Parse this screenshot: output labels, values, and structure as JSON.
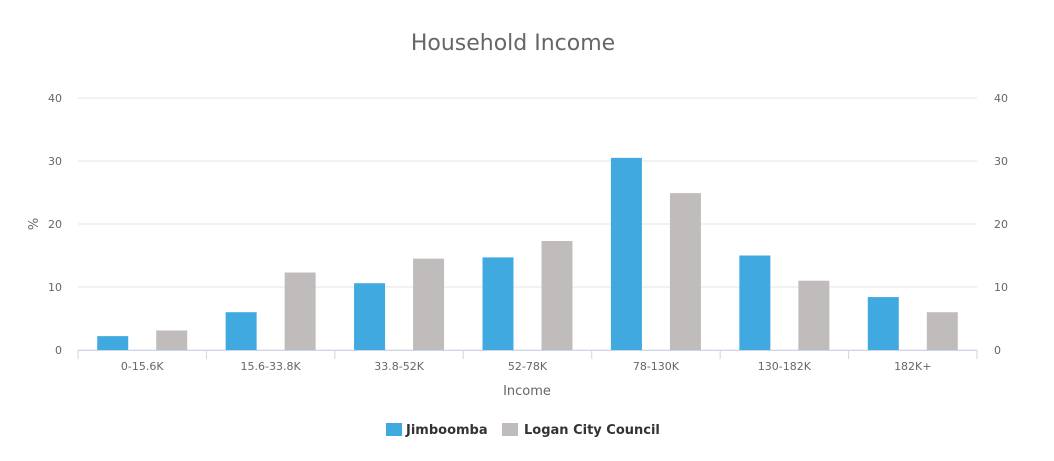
{
  "chart_data": {
    "type": "bar",
    "title": "Household Income",
    "xlabel": "Income",
    "ylabel": "%",
    "categories": [
      "0-15.6K",
      "15.6-33.8K",
      "33.8-52K",
      "52-78K",
      "78-130K",
      "130-182K",
      "182K+"
    ],
    "series": [
      {
        "name": "Jimboomba",
        "color": "#3fa9e0",
        "values": [
          2.2,
          6.0,
          10.6,
          14.7,
          30.5,
          15.0,
          8.4
        ]
      },
      {
        "name": "Logan City Council",
        "color": "#c0bcbc",
        "values": [
          3.1,
          12.3,
          14.5,
          17.3,
          24.9,
          11.0,
          6.0
        ]
      }
    ],
    "ylim": [
      0,
      40
    ],
    "yticks": [
      0,
      10,
      20,
      30,
      40
    ],
    "secondary_axis": true,
    "grid": true,
    "legend_position": "bottom-center"
  }
}
